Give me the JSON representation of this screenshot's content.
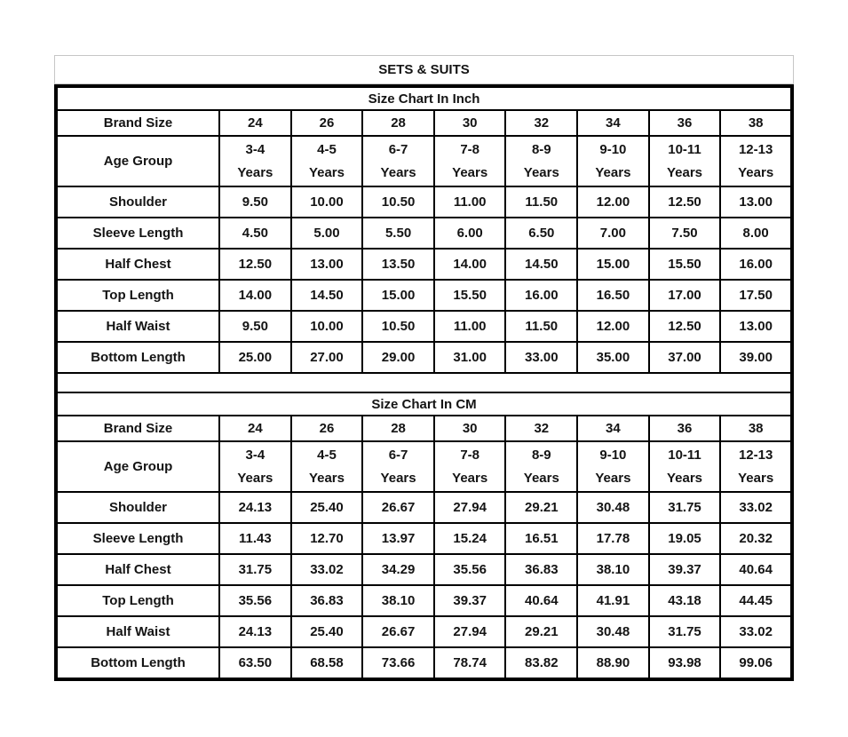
{
  "page_title": "SETS & SUITS",
  "colors": {
    "text": "#141414",
    "table_border": "#000000",
    "title_box_border": "#c6c6c6",
    "background": "#ffffff"
  },
  "chart_data": [
    {
      "type": "table",
      "title": "Size Chart In Inch",
      "columns": [
        "Brand Size",
        "24",
        "26",
        "28",
        "30",
        "32",
        "34",
        "36",
        "38"
      ],
      "rows": [
        [
          "Age Group",
          "3-4\nYears",
          "4-5\nYears",
          "6-7\nYears",
          "7-8\nYears",
          "8-9\nYears",
          "9-10\nYears",
          "10-11\nYears",
          "12-13\nYears"
        ],
        [
          "Shoulder",
          "9.50",
          "10.00",
          "10.50",
          "11.00",
          "11.50",
          "12.00",
          "12.50",
          "13.00"
        ],
        [
          "Sleeve Length",
          "4.50",
          "5.00",
          "5.50",
          "6.00",
          "6.50",
          "7.00",
          "7.50",
          "8.00"
        ],
        [
          "Half Chest",
          "12.50",
          "13.00",
          "13.50",
          "14.00",
          "14.50",
          "15.00",
          "15.50",
          "16.00"
        ],
        [
          "Top Length",
          "14.00",
          "14.50",
          "15.00",
          "15.50",
          "16.00",
          "16.50",
          "17.00",
          "17.50"
        ],
        [
          "Half Waist",
          "9.50",
          "10.00",
          "10.50",
          "11.00",
          "11.50",
          "12.00",
          "12.50",
          "13.00"
        ],
        [
          "Bottom Length",
          "25.00",
          "27.00",
          "29.00",
          "31.00",
          "33.00",
          "35.00",
          "37.00",
          "39.00"
        ]
      ]
    },
    {
      "type": "table",
      "title": "Size Chart In CM",
      "columns": [
        "Brand Size",
        "24",
        "26",
        "28",
        "30",
        "32",
        "34",
        "36",
        "38"
      ],
      "rows": [
        [
          "Age Group",
          "3-4\nYears",
          "4-5\nYears",
          "6-7\nYears",
          "7-8\nYears",
          "8-9\nYears",
          "9-10\nYears",
          "10-11\nYears",
          "12-13\nYears"
        ],
        [
          "Shoulder",
          "24.13",
          "25.40",
          "26.67",
          "27.94",
          "29.21",
          "30.48",
          "31.75",
          "33.02"
        ],
        [
          "Sleeve Length",
          "11.43",
          "12.70",
          "13.97",
          "15.24",
          "16.51",
          "17.78",
          "19.05",
          "20.32"
        ],
        [
          "Half Chest",
          "31.75",
          "33.02",
          "34.29",
          "35.56",
          "36.83",
          "38.10",
          "39.37",
          "40.64"
        ],
        [
          "Top Length",
          "35.56",
          "36.83",
          "38.10",
          "39.37",
          "40.64",
          "41.91",
          "43.18",
          "44.45"
        ],
        [
          "Half Waist",
          "24.13",
          "25.40",
          "26.67",
          "27.94",
          "29.21",
          "30.48",
          "31.75",
          "33.02"
        ],
        [
          "Bottom Length",
          "63.50",
          "68.58",
          "73.66",
          "78.74",
          "83.82",
          "88.90",
          "93.98",
          "99.06"
        ]
      ]
    }
  ]
}
